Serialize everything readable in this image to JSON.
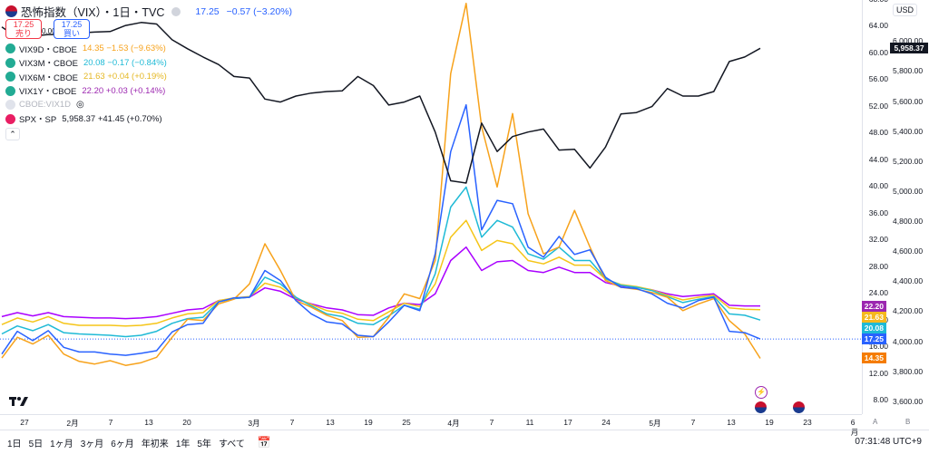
{
  "header": {
    "title": "恐怖指数（VIX）・1日・TVC",
    "price": "17.25",
    "change": "−0.57 (−3.20%)"
  },
  "buttons": {
    "sell_price": "17.25",
    "sell_label": "売り",
    "spread": "0.00",
    "buy_price": "17.25",
    "buy_label": "買い"
  },
  "legend": [
    {
      "name": "VIX9D・CBOE",
      "value": "14.35",
      "change": "−1.53 (−9.63%)",
      "color": "#f7a21b"
    },
    {
      "name": "VIX3M・CBOE",
      "value": "20.08",
      "change": "−0.17 (−0.84%)",
      "color": "#1fbad6"
    },
    {
      "name": "VIX6M・CBOE",
      "value": "21.63",
      "change": "+0.04 (+0.19%)",
      "color": "#e5b824"
    },
    {
      "name": "VIX1Y・CBOE",
      "value": "22.20",
      "change": "+0.03 (+0.14%)",
      "color": "#9c27b0"
    },
    {
      "name": "CBOE:VIX1D",
      "value": "",
      "change": "",
      "color": "#cccccc"
    },
    {
      "name": "SPX・SP",
      "value": "5,958.37",
      "change": "+41.45 (+0.70%)",
      "color": "#e91e63"
    }
  ],
  "currency": "USD",
  "axis_left_ticks": [
    "68.00",
    "64.00",
    "60.00",
    "56.00",
    "52.00",
    "48.00",
    "44.00",
    "40.00",
    "36.00",
    "32.00",
    "28.00",
    "24.00",
    "20.00",
    "16.00",
    "12.00",
    "8.00"
  ],
  "axis_right_ticks": [
    "6,000.00",
    "5,800.00",
    "5,600.00",
    "5,400.00",
    "5,200.00",
    "5,000.00",
    "4,800.00",
    "4,600.00",
    "4,400.00",
    "4,200.00",
    "4,000.00",
    "3,800.00",
    "3,600.00"
  ],
  "badges_left": [
    {
      "text": "22.20",
      "color": "#9c27b0",
      "value": 22.2
    },
    {
      "text": "21.63",
      "color": "#f5b81e",
      "value": 21.63
    },
    {
      "text": "20.08",
      "color": "#1fbad6",
      "value": 20.08
    },
    {
      "text": "17.25",
      "color": "#2962ff",
      "value": 17.25
    },
    {
      "text": "14.35",
      "color": "#f57c00",
      "value": 14.35
    }
  ],
  "badge_right": {
    "text": "5,958.37",
    "color": "#131722"
  },
  "time_ticks": [
    "27",
    "2月",
    "7",
    "13",
    "20",
    "3月",
    "7",
    "13",
    "19",
    "25",
    "4月",
    "7",
    "11",
    "17",
    "24",
    "5月",
    "7",
    "13",
    "19",
    "23",
    "6月"
  ],
  "bottom_bar": {
    "ranges": [
      "1日",
      "5日",
      "1ヶ月",
      "3ヶ月",
      "6ヶ月",
      "年初来",
      "1年",
      "5年",
      "すべて"
    ],
    "clock": "07:31:48 UTC+9"
  },
  "corner_labels": {
    "a": "A",
    "b": "B"
  },
  "chart_data": {
    "type": "line",
    "x": [
      "1/24",
      "1/27",
      "1/29",
      "1/31",
      "2/4",
      "2/6",
      "2/10",
      "2/12",
      "2/14",
      "2/18",
      "2/20",
      "2/24",
      "2/26",
      "2/28",
      "3/3",
      "3/5",
      "3/7",
      "3/10",
      "3/12",
      "3/14",
      "3/17",
      "3/19",
      "3/21",
      "3/24",
      "3/26",
      "3/28",
      "3/31",
      "4/2",
      "4/3",
      "4/4",
      "4/7",
      "4/8",
      "4/9",
      "4/10",
      "4/11",
      "4/14",
      "4/16",
      "4/17",
      "4/21",
      "4/23",
      "4/25",
      "4/28",
      "4/30",
      "5/2",
      "5/5",
      "5/7",
      "5/9",
      "5/12",
      "5/14",
      "5/16"
    ],
    "series": [
      {
        "name": "VIX9D・CBOE",
        "axis": "left",
        "values": [
          14.4,
          17.5,
          16.5,
          17.8,
          15.0,
          13.9,
          13.5,
          14.0,
          13.3,
          13.7,
          14.5,
          17.5,
          20.2,
          20.0,
          22.5,
          23.2,
          25.5,
          31.5,
          27.5,
          23.0,
          22.0,
          20.8,
          20.0,
          17.5,
          17.6,
          20.5,
          24.0,
          23.3,
          29.0,
          57.0,
          67.5,
          49.0,
          40.0,
          51.0,
          36.0,
          30.0,
          31.0,
          36.5,
          31.0,
          26.0,
          25.0,
          24.7,
          24.2,
          23.5,
          21.5,
          22.5,
          23.3,
          20.0,
          18.0,
          14.35
        ]
      },
      {
        "name": "VIX",
        "axis": "left",
        "values": [
          15.0,
          18.4,
          17.0,
          18.5,
          16.0,
          15.3,
          15.3,
          15.0,
          14.8,
          15.1,
          15.5,
          18.3,
          19.4,
          19.6,
          22.8,
          23.4,
          23.5,
          27.5,
          26.0,
          23.0,
          21.0,
          19.8,
          19.5,
          17.8,
          17.6,
          19.8,
          22.3,
          21.5,
          30.0,
          45.3,
          52.3,
          33.6,
          38.0,
          37.5,
          31.0,
          29.5,
          32.6,
          29.9,
          30.6,
          26.5,
          25.0,
          24.8,
          24.0,
          22.6,
          21.9,
          23.0,
          23.5,
          18.4,
          18.2,
          17.25
        ]
      },
      {
        "name": "VIX3M・CBOE",
        "axis": "left",
        "values": [
          18.0,
          19.2,
          18.5,
          19.4,
          18.2,
          18.0,
          17.9,
          17.8,
          17.6,
          17.8,
          18.4,
          19.6,
          20.3,
          20.5,
          22.8,
          23.3,
          23.5,
          26.5,
          25.5,
          23.5,
          22.2,
          21.0,
          20.6,
          19.6,
          19.4,
          20.7,
          22.3,
          21.7,
          27.0,
          37.0,
          40.0,
          32.5,
          35.0,
          34.0,
          30.0,
          29.2,
          31.0,
          29.0,
          29.0,
          26.3,
          25.3,
          25.0,
          24.5,
          23.6,
          22.7,
          23.2,
          23.6,
          21.0,
          20.8,
          20.08
        ]
      },
      {
        "name": "VIX6M・CBOE",
        "axis": "left",
        "values": [
          19.4,
          20.4,
          19.8,
          20.6,
          19.6,
          19.3,
          19.3,
          19.3,
          19.2,
          19.3,
          19.6,
          20.4,
          21.0,
          21.2,
          23.0,
          23.4,
          23.6,
          25.6,
          25.0,
          23.4,
          22.4,
          21.5,
          21.1,
          20.2,
          20.0,
          21.3,
          22.6,
          22.1,
          25.5,
          32.5,
          35.0,
          30.5,
          32.0,
          31.5,
          29.0,
          28.5,
          29.5,
          28.3,
          28.3,
          26.2,
          25.4,
          25.1,
          24.6,
          23.8,
          23.1,
          23.5,
          23.8,
          21.9,
          21.7,
          21.63
        ]
      },
      {
        "name": "VIX1Y・CBOE",
        "axis": "left",
        "values": [
          20.6,
          21.2,
          20.7,
          21.2,
          20.6,
          20.5,
          20.4,
          20.4,
          20.3,
          20.4,
          20.6,
          21.1,
          21.6,
          21.8,
          23.0,
          23.3,
          23.5,
          24.9,
          24.4,
          23.2,
          22.5,
          21.9,
          21.6,
          20.9,
          20.8,
          21.9,
          22.6,
          22.4,
          24.0,
          29.0,
          31.0,
          27.5,
          28.8,
          29.0,
          27.5,
          27.2,
          28.0,
          27.2,
          27.2,
          25.7,
          25.2,
          25.0,
          24.6,
          24.0,
          23.6,
          23.8,
          24.0,
          22.3,
          22.2,
          22.2
        ]
      },
      {
        "name": "SPX・SP",
        "axis": "right",
        "values": [
          6100,
          6030,
          6040,
          6050,
          6050,
          6060,
          6066,
          6070,
          6110,
          6130,
          6120,
          6015,
          5955,
          5900,
          5850,
          5770,
          5760,
          5620,
          5600,
          5640,
          5660,
          5670,
          5675,
          5770,
          5710,
          5580,
          5600,
          5640,
          5400,
          5075,
          5060,
          5460,
          5270,
          5370,
          5400,
          5420,
          5280,
          5285,
          5160,
          5300,
          5520,
          5530,
          5570,
          5690,
          5640,
          5640,
          5670,
          5870,
          5900,
          5958.37
        ]
      }
    ],
    "ylim_left": [
      6,
      68
    ],
    "ylim_right": [
      3520,
      6280
    ],
    "baseline_last_vix": 17.25
  }
}
